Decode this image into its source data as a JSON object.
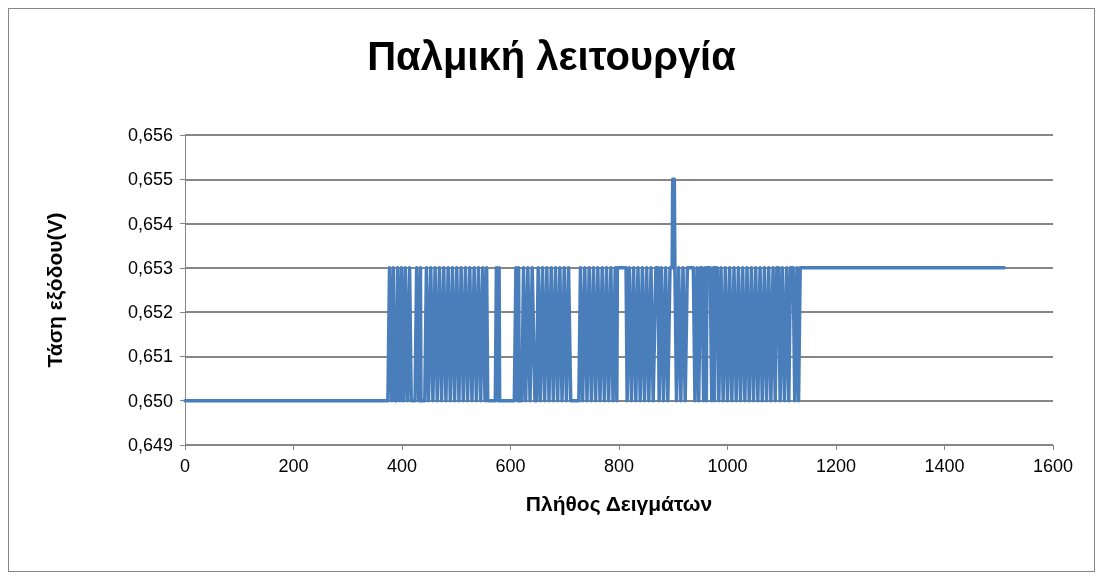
{
  "chart_data": {
    "type": "line",
    "title": "Παλμική λειτουργία",
    "xlabel": "Πλήθος Δειγμάτων",
    "ylabel": "Τάση εξόδου(V)",
    "xlim": [
      0,
      1600
    ],
    "xticks": [
      0,
      200,
      400,
      600,
      800,
      1000,
      1200,
      1400,
      1600
    ],
    "ylim": [
      0.649,
      0.656
    ],
    "yticks": [
      {
        "value": 0.649,
        "label": "0,649"
      },
      {
        "value": 0.65,
        "label": "0,650"
      },
      {
        "value": 0.651,
        "label": "0,651"
      },
      {
        "value": 0.652,
        "label": "0,652"
      },
      {
        "value": 0.653,
        "label": "0,653"
      },
      {
        "value": 0.654,
        "label": "0,654"
      },
      {
        "value": 0.655,
        "label": "0,655"
      },
      {
        "value": 0.656,
        "label": "0,656"
      }
    ],
    "grid": "y",
    "marker": "none",
    "line_style": "solid",
    "series": [
      {
        "color": "#4a7ebb",
        "x": [
          0,
          374,
          377,
          381,
          384,
          387,
          390,
          392,
          396,
          399,
          401,
          403,
          406,
          410,
          414,
          417,
          424,
          427,
          431,
          434,
          435,
          442,
          445,
          449,
          453,
          457,
          461,
          465,
          469,
          473,
          477,
          481,
          485,
          489,
          493,
          497,
          501,
          505,
          509,
          513,
          517,
          521,
          525,
          529,
          533,
          537,
          541,
          545,
          549,
          553,
          556,
          558,
          572,
          574,
          577,
          579,
          580,
          607,
          610,
          613,
          615,
          616,
          621,
          624,
          628,
          632,
          636,
          640,
          645,
          648,
          651,
          655,
          659,
          663,
          667,
          671,
          675,
          679,
          683,
          687,
          691,
          695,
          699,
          703,
          707,
          711,
          726,
          729,
          733,
          737,
          741,
          745,
          749,
          753,
          757,
          761,
          765,
          769,
          773,
          777,
          781,
          785,
          789,
          793,
          796,
          797,
          813,
          815,
          819,
          823,
          827,
          831,
          835,
          839,
          843,
          847,
          851,
          855,
          859,
          863,
          868,
          872,
          874,
          878,
          882,
          886,
          890,
          894,
          898,
          899,
          902,
          903,
          906,
          910,
          914,
          918,
          922,
          926,
          937,
          940,
          944,
          947,
          950,
          953,
          956,
          959,
          961,
          962,
          968,
          971,
          974,
          976,
          977,
          981,
          984,
          988,
          992,
          996,
          1000,
          1004,
          1008,
          1012,
          1016,
          1020,
          1024,
          1028,
          1032,
          1036,
          1040,
          1044,
          1048,
          1052,
          1056,
          1060,
          1064,
          1068,
          1072,
          1076,
          1080,
          1084,
          1088,
          1091,
          1094,
          1097,
          1101,
          1105,
          1109,
          1113,
          1116,
          1121,
          1124,
          1128,
          1131,
          1134,
          1510
        ],
        "values": [
          0.65,
          0.65,
          0.653,
          0.65,
          0.653,
          0.65,
          0.65,
          0.653,
          0.65,
          0.653,
          0.65,
          0.65,
          0.653,
          0.65,
          0.653,
          0.65,
          0.65,
          0.653,
          0.65,
          0.653,
          0.65,
          0.65,
          0.653,
          0.65,
          0.653,
          0.65,
          0.653,
          0.65,
          0.653,
          0.65,
          0.653,
          0.65,
          0.653,
          0.65,
          0.653,
          0.65,
          0.653,
          0.65,
          0.653,
          0.65,
          0.653,
          0.65,
          0.653,
          0.65,
          0.653,
          0.65,
          0.653,
          0.65,
          0.653,
          0.65,
          0.653,
          0.65,
          0.65,
          0.653,
          0.65,
          0.653,
          0.65,
          0.65,
          0.653,
          0.65,
          0.653,
          0.65,
          0.65,
          0.653,
          0.65,
          0.653,
          0.65,
          0.653,
          0.65,
          0.65,
          0.653,
          0.65,
          0.653,
          0.65,
          0.653,
          0.65,
          0.653,
          0.65,
          0.653,
          0.65,
          0.653,
          0.65,
          0.653,
          0.65,
          0.653,
          0.65,
          0.65,
          0.653,
          0.65,
          0.653,
          0.65,
          0.653,
          0.65,
          0.653,
          0.65,
          0.653,
          0.65,
          0.653,
          0.65,
          0.653,
          0.65,
          0.653,
          0.65,
          0.653,
          0.65,
          0.653,
          0.653,
          0.65,
          0.653,
          0.65,
          0.653,
          0.65,
          0.653,
          0.65,
          0.653,
          0.65,
          0.653,
          0.65,
          0.653,
          0.65,
          0.653,
          0.653,
          0.65,
          0.653,
          0.65,
          0.653,
          0.65,
          0.653,
          0.653,
          0.655,
          0.655,
          0.653,
          0.65,
          0.653,
          0.65,
          0.653,
          0.65,
          0.653,
          0.653,
          0.65,
          0.653,
          0.65,
          0.653,
          0.653,
          0.65,
          0.653,
          0.65,
          0.653,
          0.653,
          0.65,
          0.653,
          0.65,
          0.653,
          0.653,
          0.65,
          0.653,
          0.65,
          0.653,
          0.65,
          0.653,
          0.65,
          0.653,
          0.65,
          0.653,
          0.65,
          0.653,
          0.65,
          0.653,
          0.65,
          0.653,
          0.65,
          0.653,
          0.65,
          0.653,
          0.65,
          0.653,
          0.65,
          0.653,
          0.65,
          0.653,
          0.65,
          0.653,
          0.653,
          0.65,
          0.653,
          0.65,
          0.653,
          0.65,
          0.653,
          0.653,
          0.65,
          0.653,
          0.65,
          0.653,
          0.653
        ]
      }
    ]
  }
}
